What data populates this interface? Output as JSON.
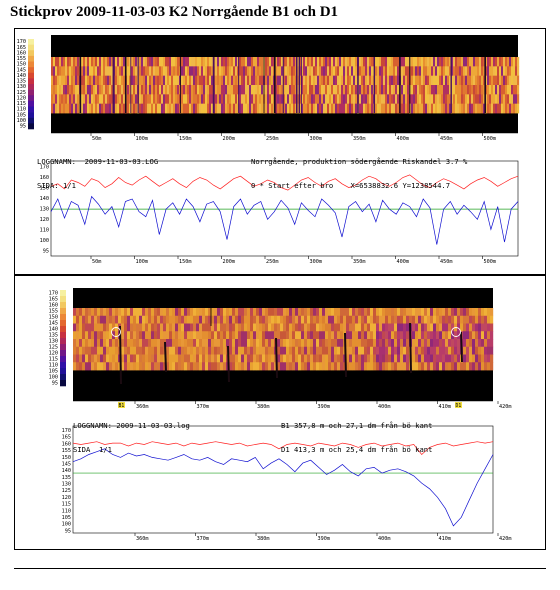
{
  "title": "Stickprov 2009-11-03-03  K2 Norrgående B1 och D1",
  "colors": {
    "red_series": "#ff2020",
    "blue_series": "#1010d0",
    "green_reference": "#20a020"
  },
  "panel1": {
    "header_left": [
      "LOGGNAMN:  2009-11-03-03.LOG",
      "SIDA: 1/1"
    ],
    "header_right": [
      "Norrgående, produktion södergående Riskandel 3.7 %",
      "0 * Start efter bro    X=6538832.6 Y=1238544.7"
    ]
  },
  "panel2": {
    "header_left": [
      "LOGGNAMN: 2009-11-03-03.log",
      "SIDA  1/1"
    ],
    "header_right": [
      "B1 357,8 m och 27,1 dm från bö kant",
      "D1 413,3 m och 25,4 dm från bö kant"
    ],
    "markers": [
      "B1",
      "D1"
    ]
  },
  "chart_data": [
    {
      "type": "heatmap",
      "name": "thermal-strip-1",
      "colorbar_ticks": [
        "170",
        "165",
        "160",
        "155",
        "150",
        "145",
        "140",
        "135",
        "130",
        "125",
        "120",
        "115",
        "110",
        "105",
        "100",
        "95"
      ],
      "x_ticks": [
        "50m",
        "100m",
        "150m",
        "200m",
        "250m",
        "300m",
        "350m",
        "400m",
        "450m",
        "500m"
      ]
    },
    {
      "type": "line",
      "name": "temperature-profile-1",
      "y_ticks": [
        "170",
        "160",
        "150",
        "140",
        "130",
        "120",
        "110",
        "100",
        "95"
      ],
      "x_ticks": [
        "50m",
        "100m",
        "150m",
        "200m",
        "250m",
        "300m",
        "350m",
        "400m",
        "450m",
        "500m"
      ],
      "ylim": [
        95,
        170
      ],
      "xlim": [
        0,
        540
      ],
      "reference_y": 132,
      "series": [
        {
          "color": "red",
          "values": [
            150,
            152,
            148,
            155,
            153,
            150,
            156,
            154,
            149,
            152,
            157,
            153,
            151,
            155,
            158,
            154,
            150,
            153,
            156,
            152,
            149,
            154,
            157,
            155,
            151,
            148,
            152,
            156,
            158,
            154,
            150,
            152,
            155,
            153,
            149,
            147,
            151,
            155,
            157,
            153,
            150,
            154,
            156,
            152,
            149,
            151,
            155,
            158,
            156,
            152,
            150,
            153,
            157,
            159,
            155,
            151,
            149,
            153,
            156,
            154,
            151,
            148,
            152,
            155,
            157,
            154,
            150,
            153,
            156,
            158
          ]
        },
        {
          "color": "blue",
          "values": [
            130,
            140,
            125,
            138,
            135,
            120,
            142,
            136,
            128,
            134,
            118,
            138,
            140,
            130,
            126,
            139,
            112,
            132,
            137,
            128,
            140,
            134,
            122,
            136,
            138,
            130,
            108,
            134,
            140,
            128,
            135,
            138,
            124,
            130,
            139,
            133,
            120,
            137,
            131,
            126,
            140,
            135,
            129,
            110,
            134,
            138,
            130,
            136,
            122,
            139,
            132,
            128,
            137,
            134,
            126,
            140,
            133,
            104,
            132,
            138,
            128,
            135,
            130,
            124,
            138,
            116,
            134,
            106,
            132,
            138
          ]
        }
      ]
    },
    {
      "type": "heatmap",
      "name": "thermal-strip-2",
      "colorbar_ticks": [
        "170",
        "165",
        "160",
        "155",
        "150",
        "145",
        "140",
        "135",
        "130",
        "125",
        "120",
        "115",
        "110",
        "105",
        "100",
        "95"
      ],
      "x_ticks": [
        "360m",
        "370m",
        "380m",
        "390m",
        "400m",
        "410m",
        "420m"
      ]
    },
    {
      "type": "line",
      "name": "temperature-profile-2",
      "y_ticks": [
        "170",
        "165",
        "160",
        "155",
        "150",
        "145",
        "140",
        "135",
        "130",
        "125",
        "120",
        "115",
        "110",
        "105",
        "100",
        "95"
      ],
      "x_ticks": [
        "360m",
        "370m",
        "380m",
        "390m",
        "400m",
        "410m",
        "420m"
      ],
      "ylim": [
        95,
        170
      ],
      "xlim": [
        353,
        420
      ],
      "reference_y": 137,
      "series": [
        {
          "color": "red",
          "values": [
            158,
            157,
            158,
            159,
            157,
            158,
            158,
            156,
            158,
            157,
            159,
            158,
            157,
            158,
            156,
            158,
            157,
            158,
            159,
            158,
            157,
            158,
            156,
            157,
            158,
            157,
            154,
            157,
            158,
            157,
            156,
            158,
            157,
            156,
            158,
            157,
            155,
            157,
            158,
            156,
            157,
            158,
            156,
            157,
            150,
            155,
            157,
            158,
            156,
            157,
            158,
            159,
            158,
            159
          ]
        },
        {
          "color": "blue",
          "values": [
            145,
            147,
            150,
            152,
            154,
            150,
            148,
            151,
            149,
            150,
            148,
            147,
            146,
            148,
            150,
            147,
            146,
            148,
            145,
            143,
            147,
            146,
            145,
            148,
            140,
            144,
            147,
            143,
            138,
            144,
            146,
            141,
            136,
            139,
            143,
            138,
            135,
            140,
            141,
            137,
            139,
            140,
            138,
            135,
            130,
            126,
            120,
            112,
            100,
            106,
            118,
            130,
            140,
            150
          ]
        }
      ]
    }
  ]
}
